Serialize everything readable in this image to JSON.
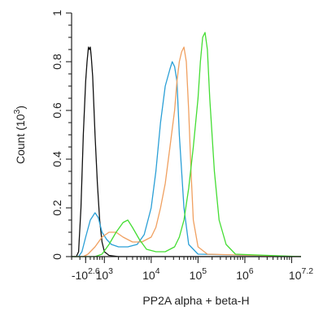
{
  "chart_data": {
    "type": "line",
    "title": "",
    "xlabel": "PP2A alpha + beta-H",
    "ylabel": "Count (10^3)",
    "ylabel_parts": {
      "text": "Count (10",
      "sup": "3",
      "close": ")"
    },
    "x_scale": "log",
    "xlim": [
      2.3,
      7.2
    ],
    "ylim": [
      0,
      1.0
    ],
    "grid": false,
    "legend": "none",
    "y_ticks": [
      {
        "value": 0,
        "label": "0"
      },
      {
        "value": 0.2,
        "label": "0.2"
      },
      {
        "value": 0.4,
        "label": "0.4"
      },
      {
        "value": 0.6,
        "label": "0.6"
      },
      {
        "value": 0.8,
        "label": "0.8"
      },
      {
        "value": 1.0,
        "label": "1"
      }
    ],
    "x_ticks": [
      {
        "value": 2.6,
        "label": "-10",
        "sup": "2.6"
      },
      {
        "value": 3,
        "label": "10",
        "sup": "3"
      },
      {
        "value": 4,
        "label": "10",
        "sup": "4"
      },
      {
        "value": 5,
        "label": "10",
        "sup": "5"
      },
      {
        "value": 6,
        "label": "10",
        "sup": "6"
      },
      {
        "value": 7.2,
        "label": "10",
        "sup": "7.2"
      }
    ],
    "series": [
      {
        "color": "#111111",
        "x": [
          2.3,
          2.4,
          2.45,
          2.5,
          2.55,
          2.6,
          2.63,
          2.66,
          2.68,
          2.7,
          2.72,
          2.75,
          2.8,
          2.85,
          2.9,
          2.95,
          3.0,
          3.1,
          3.3,
          4.0,
          7.2
        ],
        "y": [
          0,
          0,
          0.02,
          0.2,
          0.5,
          0.72,
          0.8,
          0.86,
          0.85,
          0.86,
          0.82,
          0.74,
          0.5,
          0.3,
          0.15,
          0.06,
          0.02,
          0.005,
          0,
          0,
          0
        ]
      },
      {
        "color": "#2a9fd6",
        "x": [
          2.3,
          2.45,
          2.52,
          2.6,
          2.7,
          2.8,
          2.87,
          2.95,
          3.05,
          3.15,
          3.3,
          3.5,
          3.7,
          3.85,
          4.0,
          4.1,
          4.2,
          4.3,
          4.4,
          4.45,
          4.5,
          4.55,
          4.6,
          4.7,
          4.8,
          5.0,
          7.2
        ],
        "y": [
          0,
          0,
          0.02,
          0.08,
          0.15,
          0.18,
          0.16,
          0.1,
          0.07,
          0.05,
          0.04,
          0.04,
          0.05,
          0.09,
          0.2,
          0.35,
          0.55,
          0.7,
          0.77,
          0.8,
          0.78,
          0.72,
          0.5,
          0.2,
          0.05,
          0.01,
          0
        ]
      },
      {
        "color": "#f0a060",
        "x": [
          2.3,
          2.55,
          2.65,
          2.8,
          2.95,
          3.1,
          3.25,
          3.4,
          3.6,
          3.8,
          4.0,
          4.1,
          4.2,
          4.3,
          4.4,
          4.5,
          4.55,
          4.6,
          4.65,
          4.7,
          4.75,
          4.8,
          4.85,
          4.9,
          5.0,
          5.2,
          7.2
        ],
        "y": [
          0,
          0,
          0.01,
          0.04,
          0.08,
          0.1,
          0.1,
          0.08,
          0.06,
          0.06,
          0.08,
          0.12,
          0.2,
          0.3,
          0.45,
          0.6,
          0.72,
          0.8,
          0.84,
          0.86,
          0.8,
          0.6,
          0.35,
          0.15,
          0.04,
          0.01,
          0
        ]
      },
      {
        "color": "#44dd33",
        "x": [
          2.3,
          2.8,
          2.95,
          3.1,
          3.25,
          3.4,
          3.5,
          3.6,
          3.75,
          3.9,
          4.1,
          4.3,
          4.5,
          4.6,
          4.7,
          4.8,
          4.9,
          5.0,
          5.05,
          5.1,
          5.15,
          5.2,
          5.25,
          5.35,
          5.45,
          5.6,
          5.8,
          7.2
        ],
        "y": [
          0,
          0,
          0.01,
          0.05,
          0.1,
          0.14,
          0.15,
          0.12,
          0.07,
          0.03,
          0.02,
          0.02,
          0.04,
          0.08,
          0.15,
          0.28,
          0.45,
          0.65,
          0.8,
          0.9,
          0.92,
          0.85,
          0.65,
          0.35,
          0.15,
          0.05,
          0.01,
          0
        ]
      }
    ]
  }
}
